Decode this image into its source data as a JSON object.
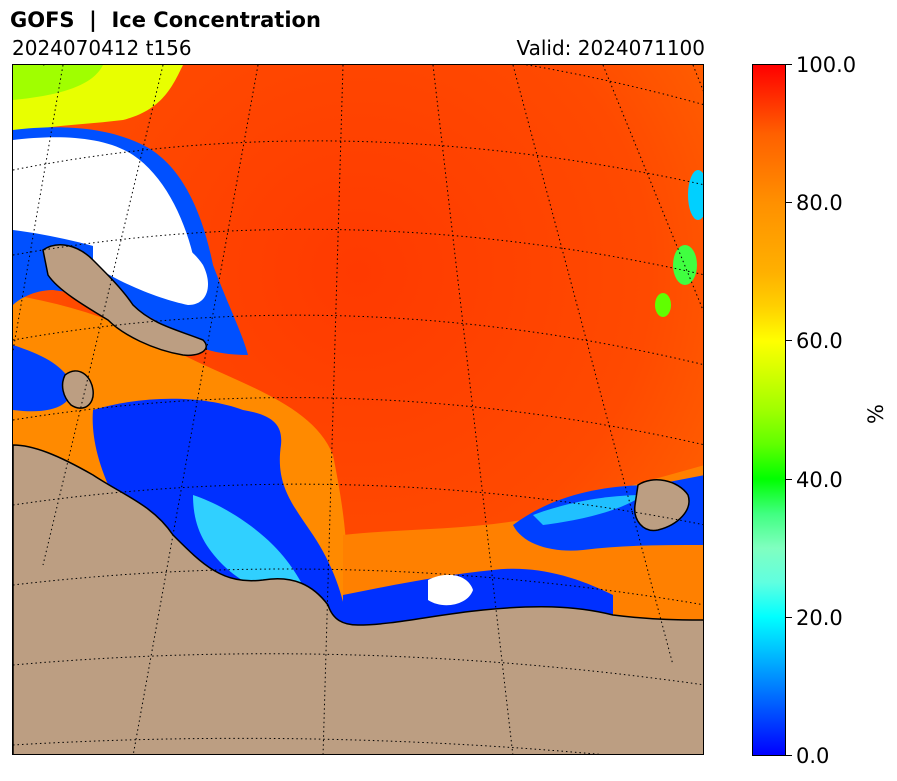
{
  "header": {
    "title": "GOFS  |  Ice Concentration",
    "run": "2024070412 t156",
    "valid": "Valid: 2024071100"
  },
  "colorbar": {
    "unit": "%",
    "ticks": [
      "0.0",
      "20.0",
      "40.0",
      "60.0",
      "80.0",
      "100.0"
    ],
    "tick_values": [
      0,
      20,
      40,
      60,
      80,
      100
    ],
    "range": [
      0,
      100
    ],
    "colors": {
      "low": "#0000ff",
      "mid_low": "#00ffff",
      "mid": "#00ff00",
      "mid_high": "#ffff00",
      "high": "#ff0000"
    }
  },
  "map": {
    "land_color": "#bc9e82",
    "no_data_color": "#ffffff",
    "gridlines": "dotted"
  }
}
